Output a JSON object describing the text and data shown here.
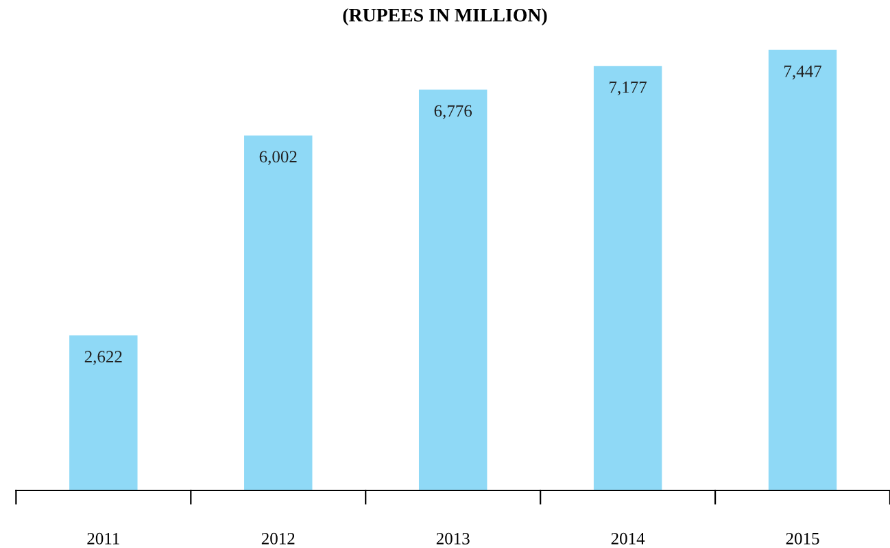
{
  "chart_data": {
    "type": "bar",
    "title": "(RUPEES IN MILLION)",
    "categories": [
      "2011",
      "2012",
      "2013",
      "2014",
      "2015"
    ],
    "values": [
      2622,
      6002,
      6776,
      7177,
      7447
    ],
    "color": "#8fd9f6",
    "data_labels": true,
    "value_labels": [
      "2,622",
      "6,002",
      "6,776",
      "7,177",
      "7,447"
    ],
    "grid": false,
    "legend": false
  }
}
